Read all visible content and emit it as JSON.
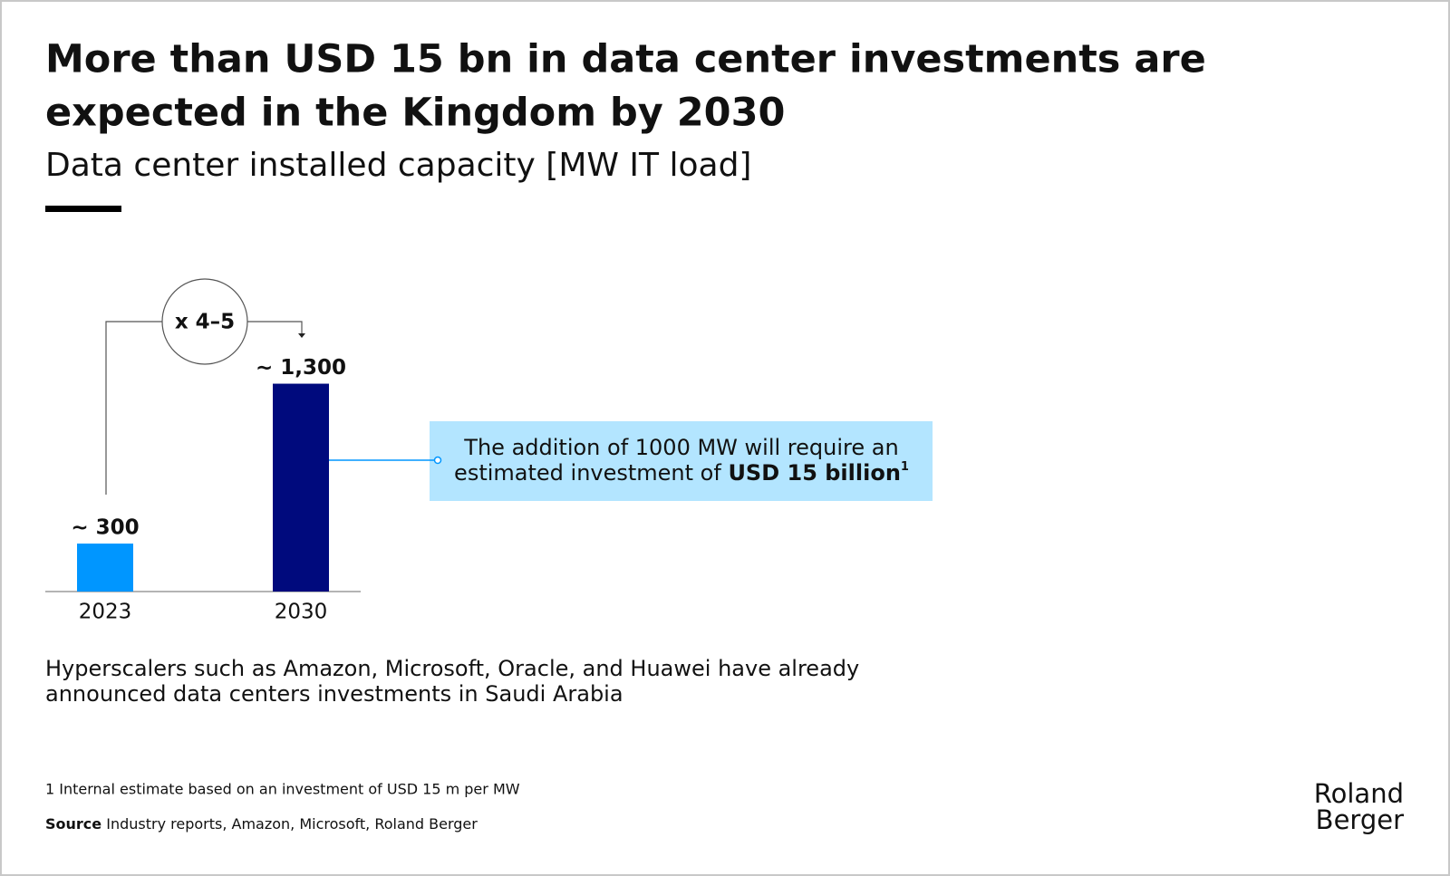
{
  "chart_data": {
    "type": "bar",
    "title": [
      "More than USD 15 bn in data center investments are",
      "expected in the Kingdom by 2030"
    ],
    "subtitle": "Data center installed capacity [MW IT load]",
    "categories": [
      "2023",
      "2030"
    ],
    "values": [
      300,
      1300
    ],
    "value_labels": [
      "~ 300",
      "~ 1,300"
    ],
    "colors": [
      "#0096ff",
      "#000a7d"
    ],
    "growth_label": "x 4–5",
    "callout": {
      "lines": [
        "The addition of 1000 MW will require an",
        "estimated investment of "
      ],
      "bold": "USD 15 billion",
      "footnote_ref": "1"
    },
    "note": [
      "Hyperscalers such as Amazon, Microsoft, Oracle, and Huawei have already",
      "announced data centers investments in Saudi Arabia"
    ]
  },
  "footnote": "1  Internal estimate based on an investment of USD 15 m per MW",
  "source": {
    "label": "Source",
    "text": " Industry reports, Amazon, Microsoft, Roland Berger"
  },
  "logo": [
    "Roland",
    "Berger"
  ]
}
